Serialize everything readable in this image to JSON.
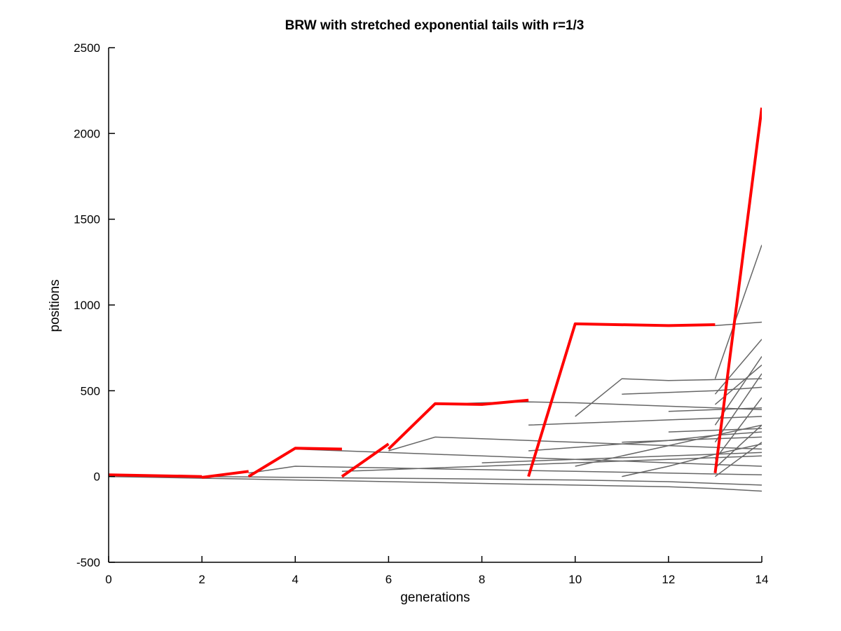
{
  "chart_data": {
    "type": "line",
    "title": "BRW with stretched exponential tails with r=1/3",
    "xlabel": "generations",
    "ylabel": "positions",
    "xlim": [
      0,
      14
    ],
    "ylim": [
      -500,
      2500
    ],
    "xticks": [
      0,
      2,
      4,
      6,
      8,
      10,
      12,
      14
    ],
    "yticks": [
      -500,
      0,
      500,
      1000,
      1500,
      2000,
      2500
    ],
    "grid": false,
    "legend": "none",
    "colors": {
      "background_paths": "#666666",
      "highlight_paths": "#ff0000",
      "axes": "#000000"
    },
    "background_series": [
      {
        "x": [
          0,
          1,
          2,
          3,
          4,
          5,
          6,
          7,
          8,
          9,
          10,
          11,
          12,
          13,
          14
        ],
        "y": [
          0,
          -5,
          -10,
          -15,
          -20,
          -25,
          -30,
          -35,
          -40,
          -45,
          -50,
          -55,
          -60,
          -70,
          -85
        ]
      },
      {
        "x": [
          2,
          3,
          4,
          5,
          6,
          7,
          8,
          9,
          10,
          11,
          12,
          13,
          14
        ],
        "y": [
          0,
          -2,
          -5,
          -8,
          -10,
          -12,
          -15,
          -18,
          -20,
          -25,
          -30,
          -40,
          -50
        ]
      },
      {
        "x": [
          3,
          4,
          5,
          6,
          7,
          8,
          9,
          10,
          11,
          12,
          13,
          14
        ],
        "y": [
          20,
          60,
          55,
          50,
          45,
          40,
          35,
          30,
          25,
          20,
          15,
          10
        ]
      },
      {
        "x": [
          4,
          5,
          6,
          7,
          8,
          9,
          10,
          11,
          12,
          13,
          14
        ],
        "y": [
          160,
          150,
          140,
          130,
          120,
          110,
          100,
          90,
          80,
          70,
          60
        ]
      },
      {
        "x": [
          6,
          7,
          8,
          9,
          10,
          11,
          12,
          13,
          14
        ],
        "y": [
          150,
          230,
          220,
          210,
          200,
          190,
          180,
          170,
          160
        ]
      },
      {
        "x": [
          7,
          8,
          9,
          10,
          11,
          12,
          13,
          14
        ],
        "y": [
          420,
          430,
          435,
          430,
          420,
          410,
          400,
          390
        ]
      },
      {
        "x": [
          9,
          10,
          11,
          12,
          13,
          14
        ],
        "y": [
          300,
          310,
          320,
          330,
          340,
          350
        ]
      },
      {
        "x": [
          10,
          11,
          12,
          13,
          14
        ],
        "y": [
          350,
          570,
          560,
          565,
          570
        ]
      },
      {
        "x": [
          11,
          12,
          13,
          14
        ],
        "y": [
          480,
          490,
          500,
          520
        ]
      },
      {
        "x": [
          11,
          12,
          13,
          14
        ],
        "y": [
          200,
          210,
          220,
          230
        ]
      },
      {
        "x": [
          12,
          13,
          14
        ],
        "y": [
          380,
          390,
          400
        ]
      },
      {
        "x": [
          12,
          13,
          14
        ],
        "y": [
          260,
          270,
          280
        ]
      },
      {
        "x": [
          13,
          14
        ],
        "y": [
          880,
          900
        ]
      },
      {
        "x": [
          13,
          14
        ],
        "y": [
          570,
          1350
        ]
      },
      {
        "x": [
          13,
          14
        ],
        "y": [
          480,
          800
        ]
      },
      {
        "x": [
          13,
          14
        ],
        "y": [
          420,
          650
        ]
      },
      {
        "x": [
          13,
          14
        ],
        "y": [
          300,
          700
        ]
      },
      {
        "x": [
          13,
          14
        ],
        "y": [
          200,
          600
        ]
      },
      {
        "x": [
          13,
          14
        ],
        "y": [
          100,
          460
        ]
      },
      {
        "x": [
          13,
          14
        ],
        "y": [
          50,
          300
        ]
      },
      {
        "x": [
          13,
          14
        ],
        "y": [
          0,
          200
        ]
      },
      {
        "x": [
          8,
          9,
          10,
          11,
          12,
          13,
          14
        ],
        "y": [
          80,
          90,
          100,
          110,
          120,
          130,
          140
        ]
      },
      {
        "x": [
          9,
          10,
          11,
          12,
          13,
          14
        ],
        "y": [
          150,
          170,
          190,
          210,
          240,
          260
        ]
      },
      {
        "x": [
          10,
          11,
          12,
          13,
          14
        ],
        "y": [
          60,
          120,
          180,
          240,
          300
        ]
      },
      {
        "x": [
          5,
          6,
          7,
          8,
          9,
          10,
          11,
          12,
          13,
          14
        ],
        "y": [
          30,
          40,
          50,
          60,
          70,
          80,
          90,
          100,
          110,
          120
        ]
      },
      {
        "x": [
          11,
          12,
          13,
          14
        ],
        "y": [
          0,
          60,
          130,
          190
        ]
      }
    ],
    "highlight_series": [
      {
        "x": [
          0,
          2
        ],
        "y": [
          10,
          0
        ]
      },
      {
        "x": [
          2,
          3
        ],
        "y": [
          -5,
          30
        ]
      },
      {
        "x": [
          3,
          4,
          5
        ],
        "y": [
          0,
          165,
          160
        ]
      },
      {
        "x": [
          5,
          6
        ],
        "y": [
          0,
          190
        ]
      },
      {
        "x": [
          6,
          7,
          8,
          9
        ],
        "y": [
          160,
          425,
          420,
          445
        ]
      },
      {
        "x": [
          9,
          10,
          12,
          13
        ],
        "y": [
          0,
          890,
          880,
          885
        ]
      },
      {
        "x": [
          13,
          14
        ],
        "y": [
          20,
          2150
        ]
      }
    ]
  }
}
